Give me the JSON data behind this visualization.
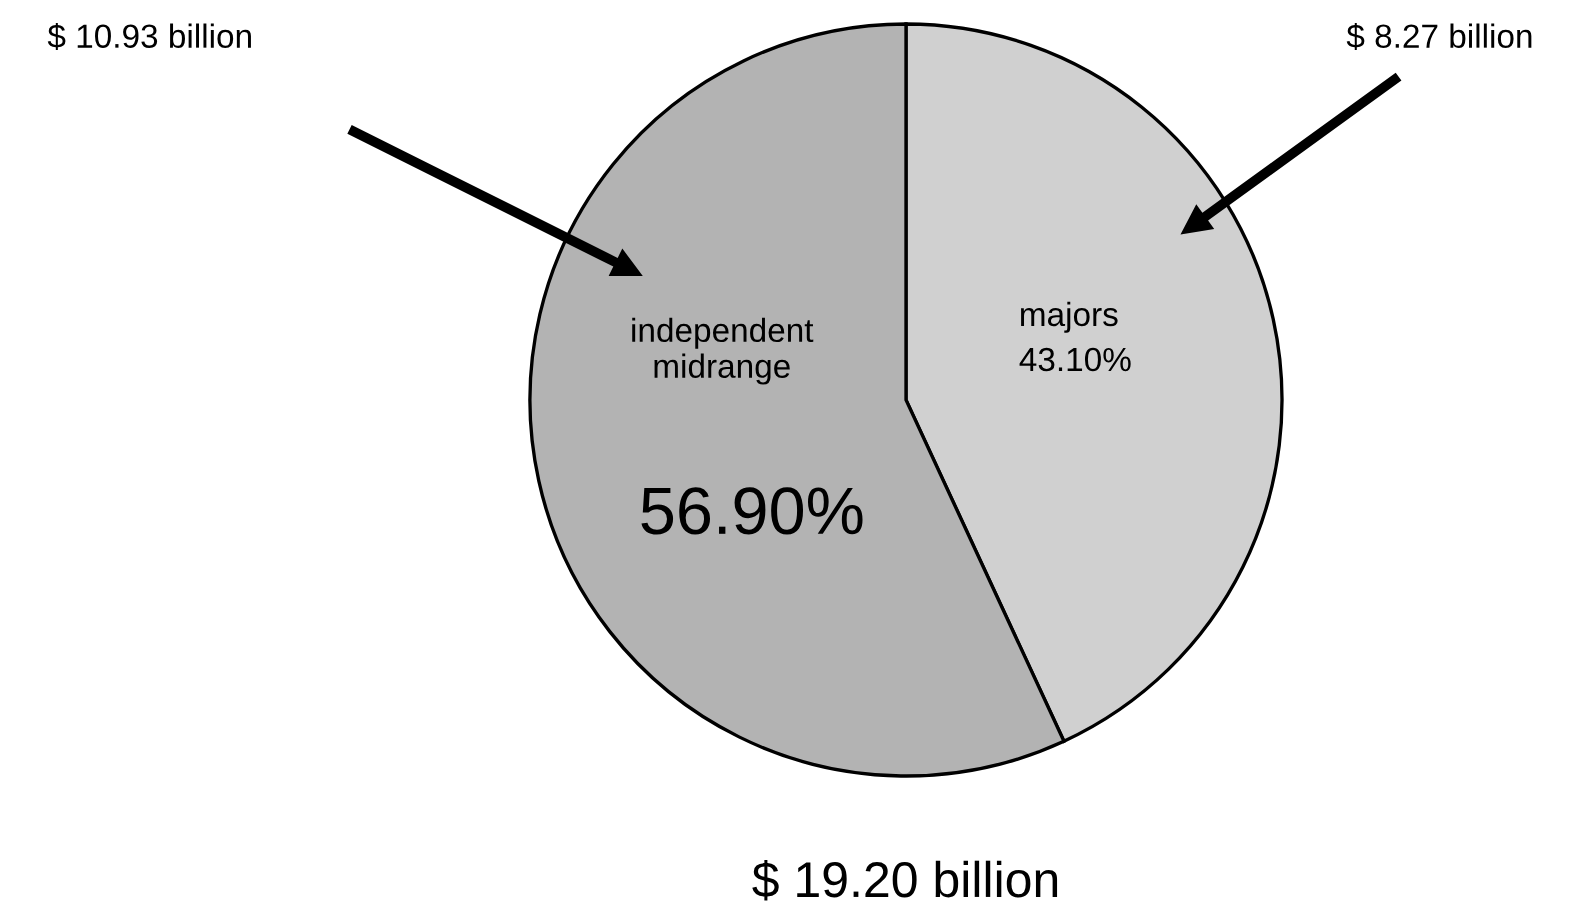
{
  "chart_data": {
    "type": "pie",
    "categories": [
      "majors",
      "independent\nmidrange"
    ],
    "values": [
      43.1,
      56.9
    ],
    "colors": [
      "#d0d0d0",
      "#b3b3b3"
    ],
    "value_labels": [
      "43.10%",
      "56.90%"
    ],
    "annotations": [
      "$ 8.27 billion",
      "$ 10.93 billion",
      "$ 19.20 billion"
    ]
  }
}
